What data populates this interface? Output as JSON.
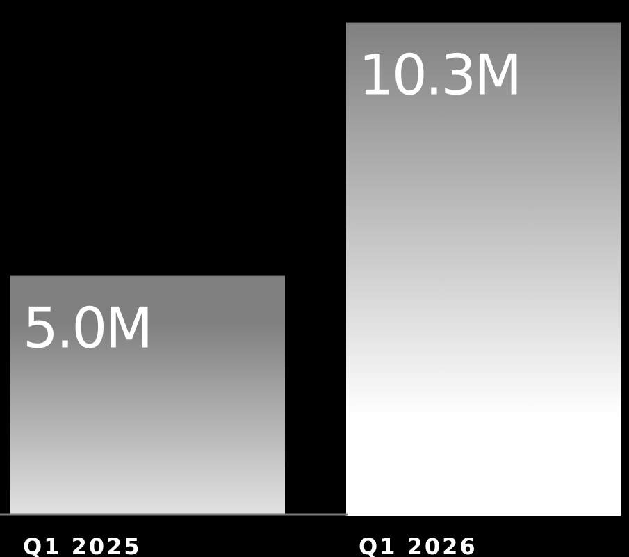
{
  "chart_data": {
    "type": "bar",
    "categories": [
      "Q1 2025",
      "Q1 2026"
    ],
    "values": [
      5.0,
      10.3
    ],
    "data_labels": [
      "5.0M",
      "10.3M"
    ],
    "title": "",
    "xlabel": "",
    "ylabel": "",
    "ylim": [
      0,
      10.6
    ],
    "grid": false,
    "legend": "none",
    "colors": {
      "background": "#000000",
      "bar_top": "#808080",
      "bar_bottom": "#ffffff",
      "baseline": "#7a7a7a",
      "text": "#ffffff"
    }
  }
}
